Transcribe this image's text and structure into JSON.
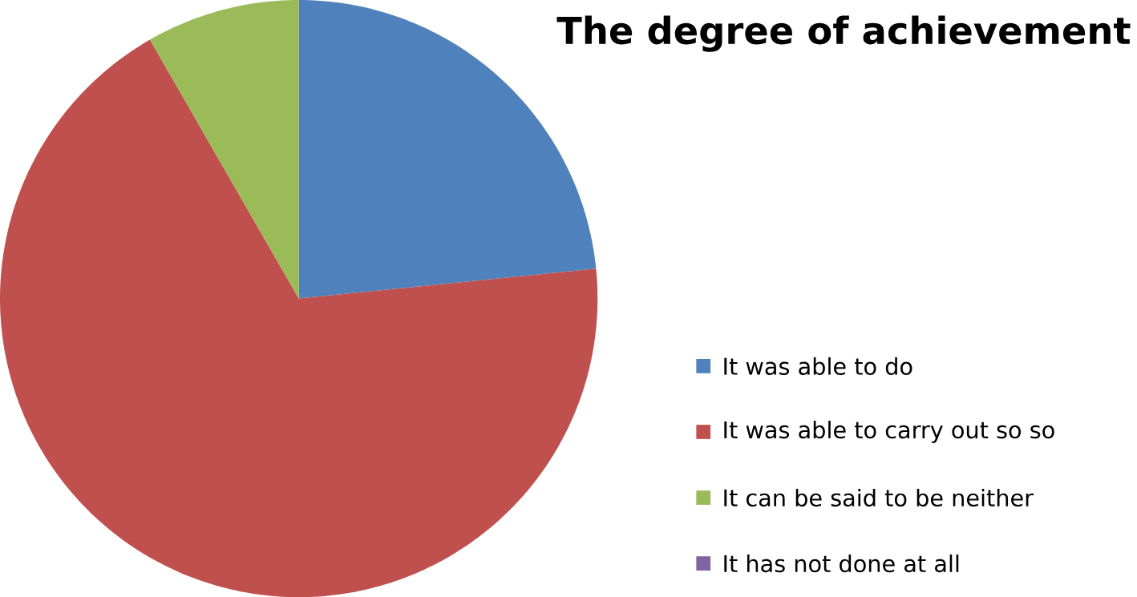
{
  "chart_data": {
    "type": "pie",
    "title": "The degree of achievement",
    "categories": [
      "It was able to do",
      "It was able to carry out so so",
      "It can be said to be neither",
      "It has not done at all"
    ],
    "values": [
      23.4,
      68.3,
      8.3,
      0
    ],
    "colors": [
      "#4f81bd",
      "#c0504d",
      "#9bbb59",
      "#8064a2"
    ],
    "legend": "right"
  }
}
